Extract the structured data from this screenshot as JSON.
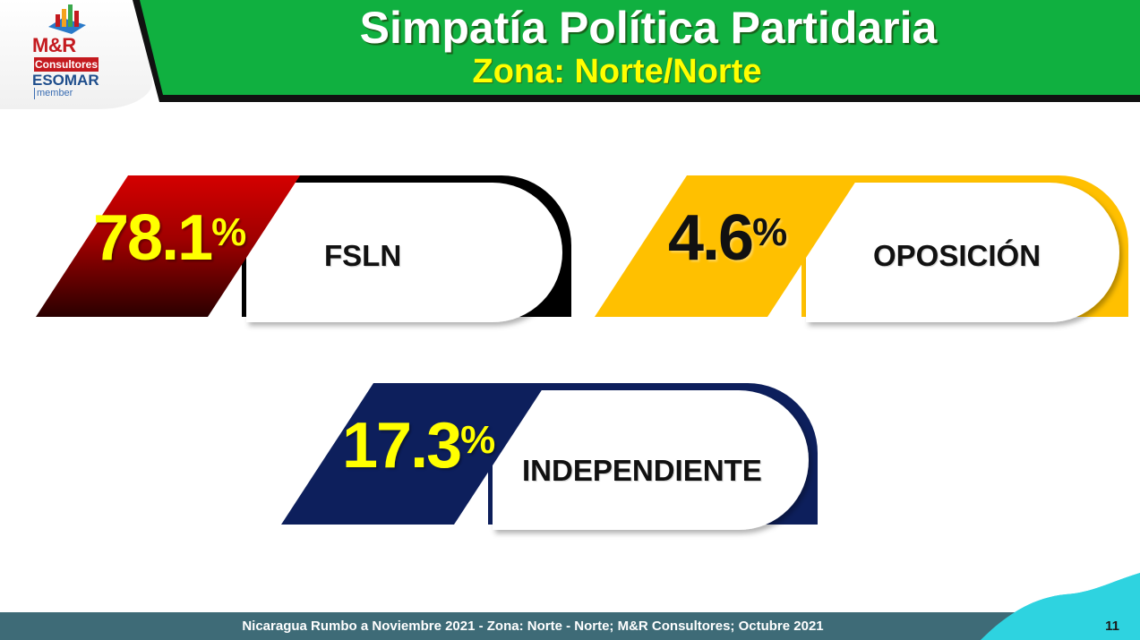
{
  "header": {
    "title": "Simpatía Política Partidaria",
    "subtitle": "Zona: Norte/Norte"
  },
  "logo": {
    "brand": "M&R",
    "brand_sub": "Consultores",
    "association": "ESOMAR",
    "association_sub": "member"
  },
  "colors": {
    "header_green": "#10b040",
    "fsln": "#c00000",
    "oposicion": "#ffc000",
    "independiente": "#0d1f5c",
    "pct_yellow": "#ffff00",
    "footer": "#3e6b77",
    "wave": "#2ed3e0"
  },
  "chart_data": {
    "type": "bar",
    "categories": [
      "FSLN",
      "OPOSICIÓN",
      "INDEPENDIENTE"
    ],
    "values": [
      78.1,
      4.6,
      17.3
    ],
    "value_labels": [
      "78.1",
      "4.6",
      "17.3"
    ],
    "unit": "%",
    "title": "Simpatía Política Partidaria",
    "subtitle": "Zona: Norte/Norte"
  },
  "footer": {
    "source": "Nicaragua Rumbo a Noviembre 2021 - Zona: Norte - Norte; M&R Consultores; Octubre 2021",
    "page_number": "11"
  }
}
